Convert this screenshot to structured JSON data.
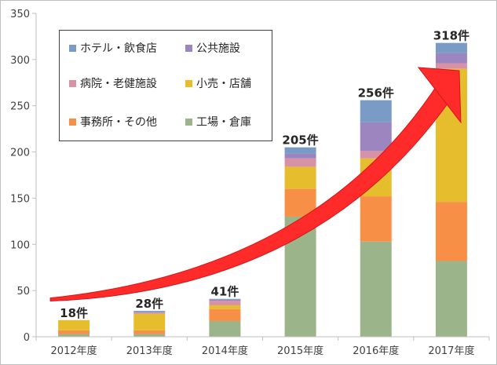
{
  "chart_data": {
    "type": "bar",
    "stacked": true,
    "categories": [
      "2012年度",
      "2013年度",
      "2014年度",
      "2015年度",
      "2016年度",
      "2017年度"
    ],
    "series": [
      {
        "name": "工場・倉庫",
        "color": "#9bb48a",
        "values": [
          3,
          3,
          17,
          130,
          103,
          82
        ]
      },
      {
        "name": "事務所・その他",
        "color": "#f79046",
        "values": [
          4,
          4,
          13,
          30,
          49,
          64
        ]
      },
      {
        "name": "小売・店舗",
        "color": "#e6bd2d",
        "values": [
          11,
          18,
          4,
          24,
          41,
          144
        ]
      },
      {
        "name": "病院・老健施設",
        "color": "#d792a5",
        "values": [
          0,
          1,
          5,
          9,
          8,
          6
        ]
      },
      {
        "name": "公共施設",
        "color": "#9d86c0",
        "values": [
          0,
          1,
          1,
          5,
          31,
          11
        ]
      },
      {
        "name": "ホテル・飲食店",
        "color": "#7a9bc6",
        "values": [
          0,
          1,
          1,
          7,
          24,
          11
        ]
      }
    ],
    "totals": [
      "18件",
      "28件",
      "41件",
      "205件",
      "256件",
      "318件"
    ],
    "ylim": [
      0,
      350
    ],
    "yticks": [
      "0",
      "50",
      "100",
      "150",
      "200",
      "250",
      "300",
      "350"
    ],
    "grid": false,
    "legend_position": "top-left",
    "trend_arrow_color": "#ff2a2a"
  },
  "legend": [
    {
      "label": "ホテル・飲食店",
      "color": "#7a9bc6"
    },
    {
      "label": "公共施設",
      "color": "#9d86c0"
    },
    {
      "label": "病院・老健施設",
      "color": "#d792a5"
    },
    {
      "label": "小売・店舗",
      "color": "#e6bd2d"
    },
    {
      "label": "事務所・その他",
      "color": "#f79046"
    },
    {
      "label": "工場・倉庫",
      "color": "#9bb48a"
    }
  ]
}
